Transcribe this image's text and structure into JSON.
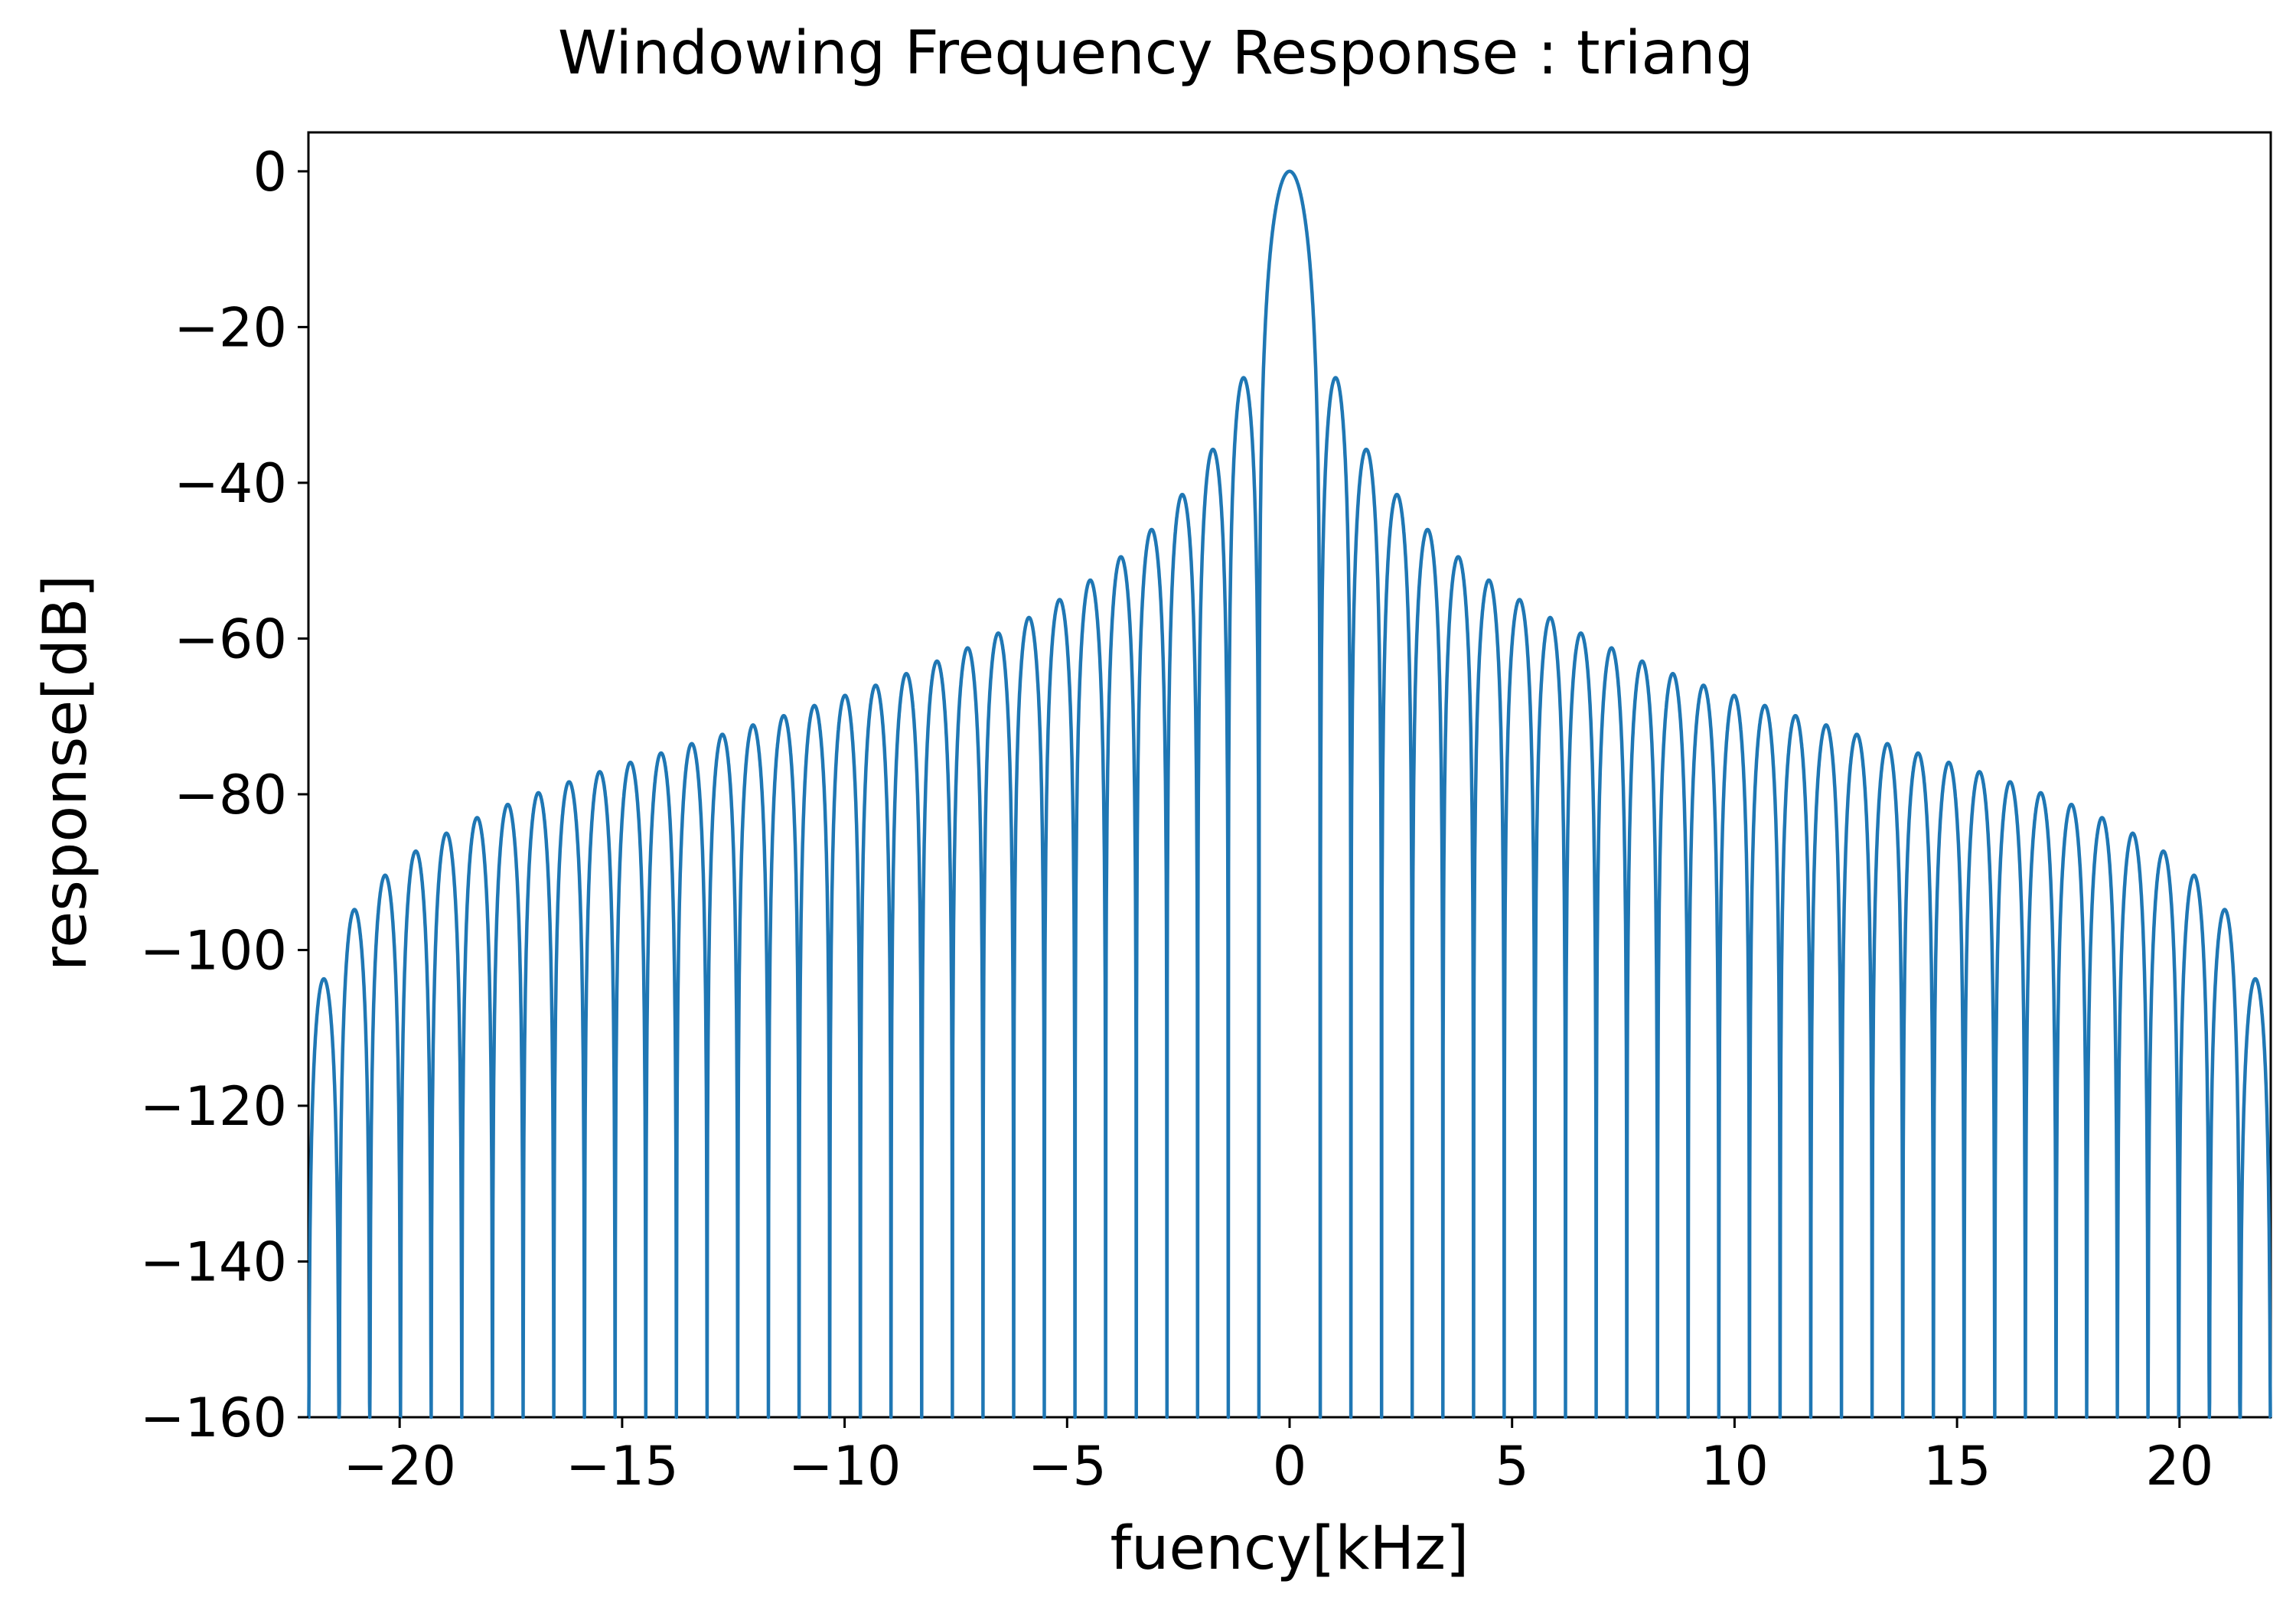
{
  "chart_data": {
    "type": "line",
    "title": "Windowing Frequency Response : triang",
    "xlabel": "fuency[kHz]",
    "ylabel": "response[dB]",
    "xlim": [
      -22.05,
      22.05
    ],
    "ylim": [
      -160,
      5
    ],
    "xticks": [
      -20,
      -15,
      -10,
      -5,
      0,
      5,
      10,
      15,
      20
    ],
    "xtick_labels": [
      "−20",
      "−15",
      "−10",
      "−5",
      "0",
      "5",
      "10",
      "15",
      "20"
    ],
    "yticks": [
      0,
      -20,
      -40,
      -60,
      -80,
      -100,
      -120,
      -140,
      -160
    ],
    "ytick_labels": [
      "0",
      "−20",
      "−40",
      "−60",
      "−80",
      "−100",
      "−120",
      "−140",
      "−160"
    ],
    "grid": false,
    "series": [
      {
        "color": "#1f77b4",
        "main_lobe": {
          "peak_x": 0,
          "peak_y": 0,
          "first_null_x": 0.689
        },
        "side_lobe_spacing": 0.689,
        "side_lobe_peaks": [
          [
            1.0,
            -26.5
          ],
          [
            1.7,
            -35.7
          ],
          [
            2.4,
            -41.5
          ],
          [
            3.0,
            -46.0
          ],
          [
            3.7,
            -49.5
          ],
          [
            4.4,
            -52.5
          ],
          [
            5.1,
            -55.0
          ],
          [
            5.8,
            -57.3
          ],
          [
            6.5,
            -59.3
          ],
          [
            7.2,
            -61.2
          ],
          [
            7.9,
            -62.9
          ],
          [
            8.6,
            -64.5
          ],
          [
            9.3,
            -66.0
          ],
          [
            10.0,
            -67.3
          ],
          [
            10.7,
            -68.6
          ],
          [
            11.4,
            -69.9
          ],
          [
            12.1,
            -71.1
          ],
          [
            12.8,
            -72.3
          ],
          [
            13.5,
            -73.5
          ],
          [
            14.2,
            -74.7
          ],
          [
            14.9,
            -75.9
          ],
          [
            15.6,
            -77.1
          ],
          [
            16.3,
            -78.4
          ],
          [
            17.0,
            -79.8
          ],
          [
            17.7,
            -81.3
          ],
          [
            18.4,
            -83.0
          ],
          [
            19.0,
            -85.0
          ],
          [
            19.7,
            -87.3
          ],
          [
            20.4,
            -90.4
          ],
          [
            21.1,
            -94.8
          ],
          [
            21.8,
            -103.7
          ]
        ],
        "symmetric": true,
        "null_floor": -160
      }
    ]
  }
}
